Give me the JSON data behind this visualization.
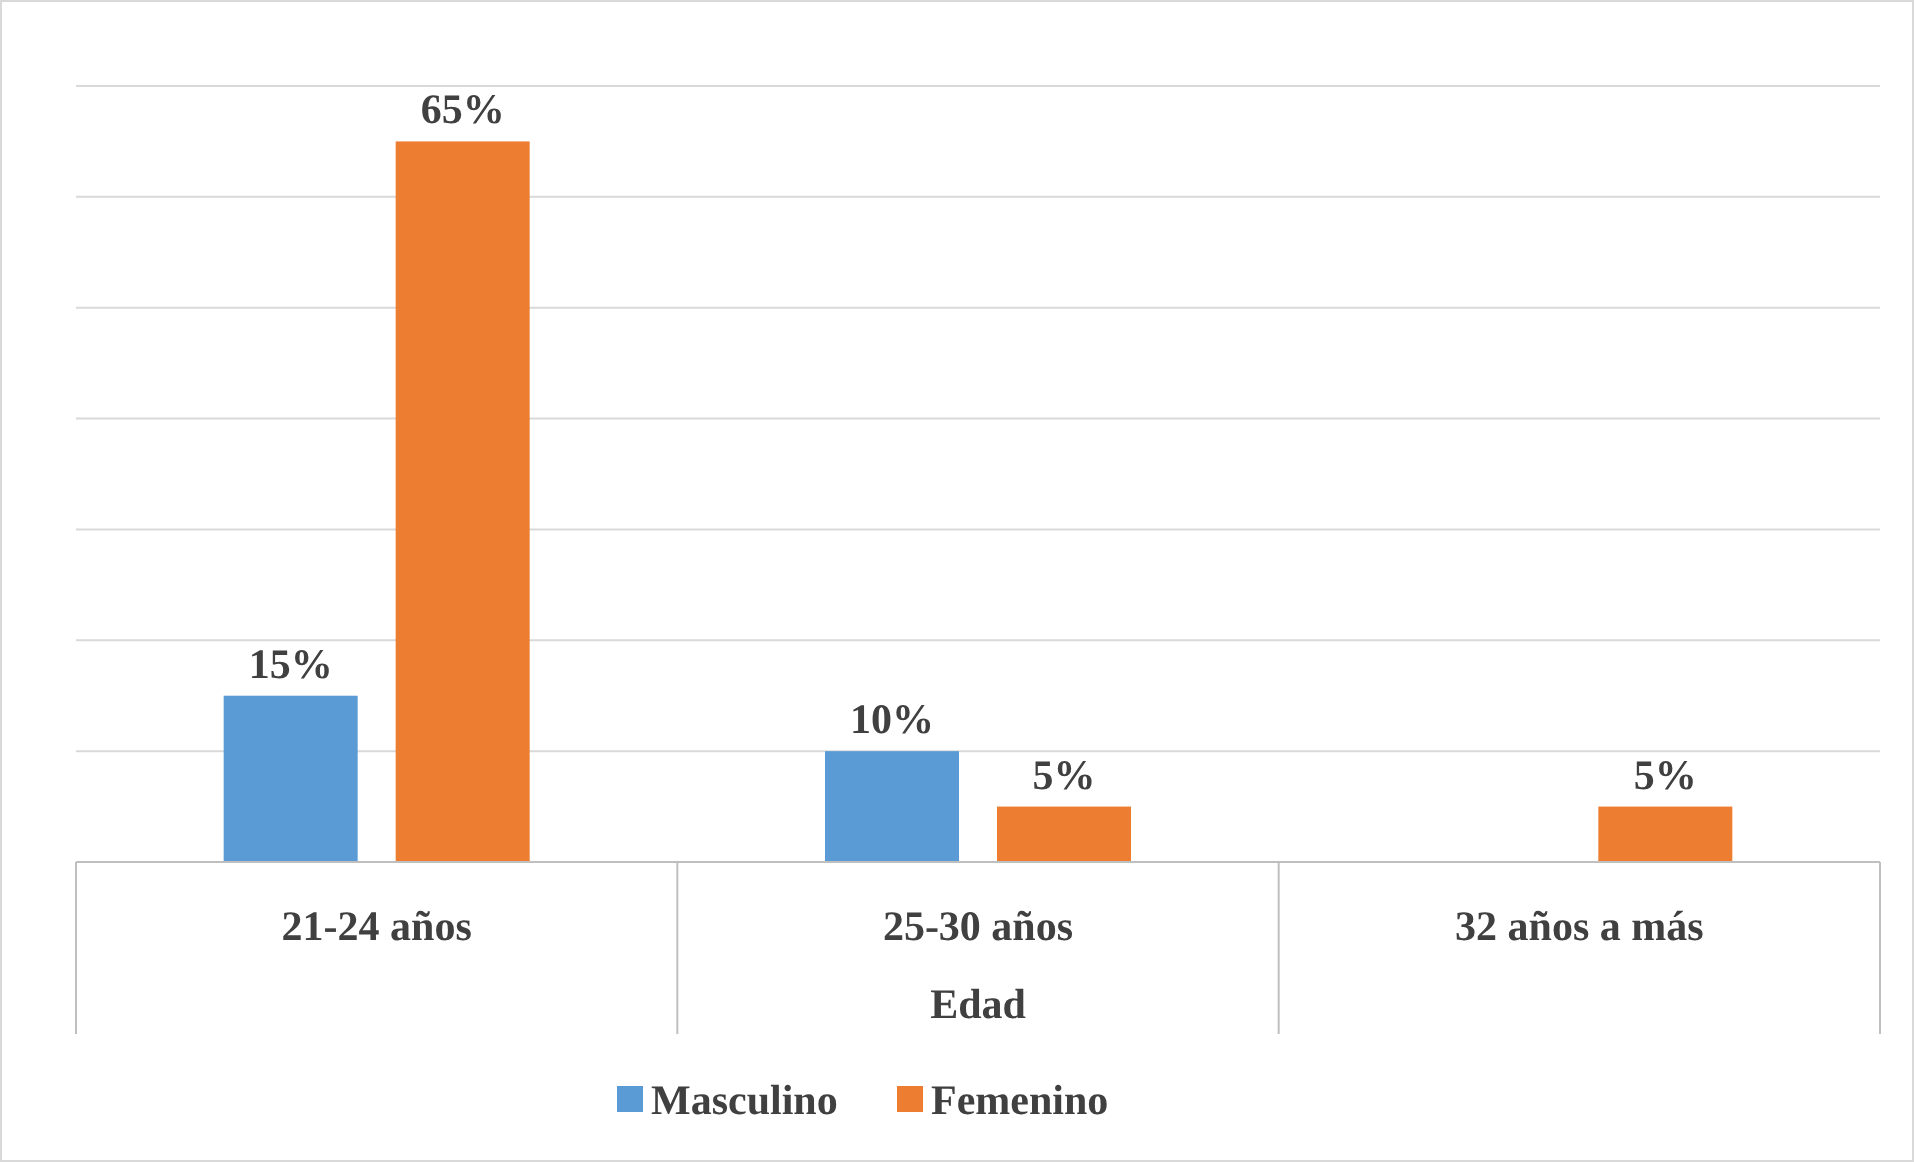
{
  "chart_data": {
    "type": "bar",
    "xlabel": "Edad",
    "categories": [
      "21-24 años",
      "25-30 años",
      "32 años a más"
    ],
    "series": [
      {
        "name": "Masculino",
        "color": "#5b9bd5",
        "values": [
          15,
          10,
          null
        ],
        "value_labels": [
          "15%",
          "10%",
          null
        ]
      },
      {
        "name": "Femenino",
        "color": "#ed7d31",
        "values": [
          65,
          5,
          5
        ],
        "value_labels": [
          "65%",
          "5%",
          "5%"
        ]
      }
    ],
    "ylim": [
      0,
      70
    ],
    "yticks": [
      {
        "value": 0,
        "label": null
      },
      {
        "value": 10,
        "label": null
      },
      {
        "value": 20,
        "label": null
      },
      {
        "value": 30,
        "label": null
      },
      {
        "value": 40,
        "label": null
      },
      {
        "value": 50,
        "label": null
      },
      {
        "value": 60,
        "label": null
      },
      {
        "value": 70,
        "label": null
      }
    ],
    "grid": "y",
    "legend": "bottom",
    "tick_labels": "x"
  }
}
